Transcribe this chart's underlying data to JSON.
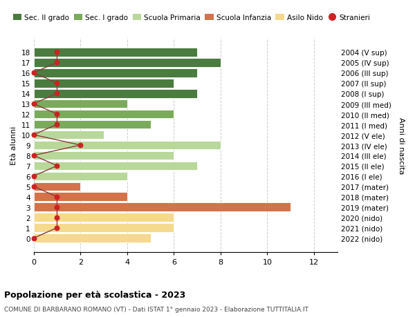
{
  "ages": [
    18,
    17,
    16,
    15,
    14,
    13,
    12,
    11,
    10,
    9,
    8,
    7,
    6,
    5,
    4,
    3,
    2,
    1,
    0
  ],
  "years": [
    "2004 (V sup)",
    "2005 (IV sup)",
    "2006 (III sup)",
    "2007 (II sup)",
    "2008 (I sup)",
    "2009 (III med)",
    "2010 (II med)",
    "2011 (I med)",
    "2012 (V ele)",
    "2013 (IV ele)",
    "2014 (III ele)",
    "2015 (II ele)",
    "2016 (I ele)",
    "2017 (mater)",
    "2018 (mater)",
    "2019 (mater)",
    "2020 (nido)",
    "2021 (nido)",
    "2022 (nido)"
  ],
  "bar_values": [
    7,
    8,
    7,
    6,
    7,
    4,
    6,
    5,
    3,
    8,
    6,
    7,
    4,
    2,
    4,
    11,
    6,
    6,
    5
  ],
  "stranieri": [
    1,
    1,
    0,
    1,
    1,
    0,
    1,
    1,
    0,
    2,
    0,
    1,
    0,
    0,
    1,
    1,
    1,
    1,
    0
  ],
  "bar_colors_by_age": {
    "sec2": {
      "ages": [
        14,
        15,
        16,
        17,
        18
      ],
      "color": "#4a7c3f"
    },
    "sec1": {
      "ages": [
        11,
        12,
        13
      ],
      "color": "#7aab5a"
    },
    "primaria": {
      "ages": [
        6,
        7,
        8,
        9,
        10
      ],
      "color": "#b8d89a"
    },
    "infanzia": {
      "ages": [
        3,
        4,
        5
      ],
      "color": "#d4724a"
    },
    "nido": {
      "ages": [
        0,
        1,
        2
      ],
      "color": "#f5d98c"
    }
  },
  "stranieri_marker_color": "#cc2222",
  "line_color": "#8b3a3a",
  "ylabel_left": "Età alunni",
  "ylabel_right": "Anni di nascita",
  "title": "Popolazione per età scolastica - 2023",
  "subtitle": "COMUNE DI BARBARANO ROMANO (VT) - Dati ISTAT 1° gennaio 2023 - Elaborazione TUTTITALIA.IT",
  "xlim": [
    0,
    13
  ],
  "xticks": [
    0,
    2,
    4,
    6,
    8,
    10,
    12
  ],
  "legend_labels": [
    "Sec. II grado",
    "Sec. I grado",
    "Scuola Primaria",
    "Scuola Infanzia",
    "Asilo Nido",
    "Stranieri"
  ],
  "legend_colors": [
    "#4a7c3f",
    "#7aab5a",
    "#b8d89a",
    "#d4724a",
    "#f5d98c",
    "#cc2222"
  ],
  "background_color": "#ffffff",
  "grid_color": "#cccccc"
}
